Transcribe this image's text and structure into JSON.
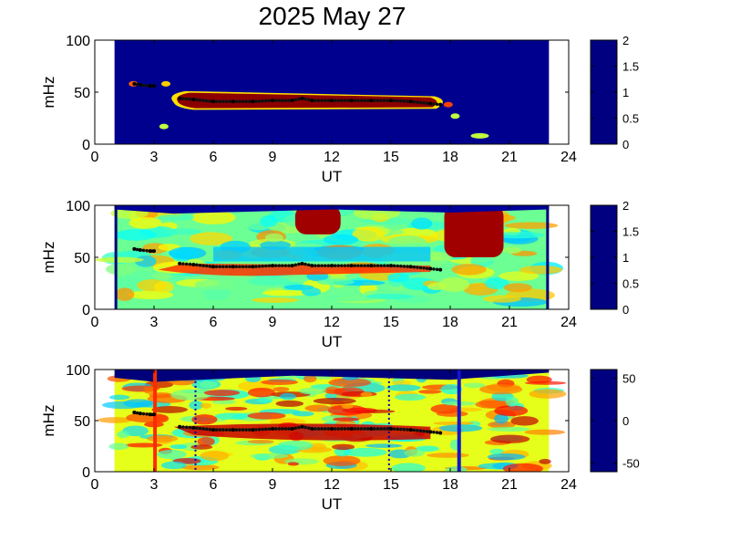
{
  "title": "2025 May 27",
  "axes": {
    "xlabel": "UT",
    "ylabel": "mHz",
    "x_ticks": [
      "0",
      "3",
      "6",
      "9",
      "12",
      "15",
      "18",
      "21",
      "24"
    ],
    "y_ticks": [
      "0",
      "50",
      "100"
    ]
  },
  "panels": [
    {
      "id": "top",
      "colorbar_ticks": [
        "0",
        "0.5",
        "1",
        "1.5",
        "2"
      ],
      "colorbar_range": [
        0,
        2
      ]
    },
    {
      "id": "middle",
      "colorbar_ticks": [
        "0",
        "0.5",
        "1",
        "1.5",
        "2"
      ],
      "colorbar_range": [
        0,
        2
      ]
    },
    {
      "id": "bottom",
      "colorbar_ticks": [
        "-50",
        "0",
        "50"
      ],
      "colorbar_range": [
        -60,
        60
      ]
    }
  ],
  "chart_data": {
    "type": "heatmap",
    "title": "2025 May 27",
    "xlabel": "UT",
    "ylabel": "mHz",
    "xlim": [
      0,
      24
    ],
    "ylim": [
      0,
      100
    ],
    "data_xrange": [
      1,
      23
    ],
    "ridge": [
      [
        2.0,
        58
      ],
      [
        2.3,
        57
      ],
      [
        2.8,
        56
      ],
      [
        3.0,
        56
      ],
      [
        4.3,
        44
      ],
      [
        5.0,
        43
      ],
      [
        6.0,
        41
      ],
      [
        7.0,
        41
      ],
      [
        8.0,
        41
      ],
      [
        9.0,
        42
      ],
      [
        10.0,
        42
      ],
      [
        10.5,
        44
      ],
      [
        11.0,
        42
      ],
      [
        12.0,
        42
      ],
      [
        13.0,
        42
      ],
      [
        14.0,
        42
      ],
      [
        15.0,
        42
      ],
      [
        16.0,
        41
      ],
      [
        17.0,
        39
      ],
      [
        17.5,
        38
      ]
    ],
    "vertical_lines": [
      {
        "x": 3.05,
        "style": "solid",
        "color": "#ff2a00"
      },
      {
        "x": 18.45,
        "style": "solid",
        "color": "#1515c8"
      },
      {
        "x": 5.1,
        "style": "dotted",
        "color": "#0000aa"
      },
      {
        "x": 14.9,
        "style": "dotted",
        "color": "#0000aa"
      }
    ]
  }
}
